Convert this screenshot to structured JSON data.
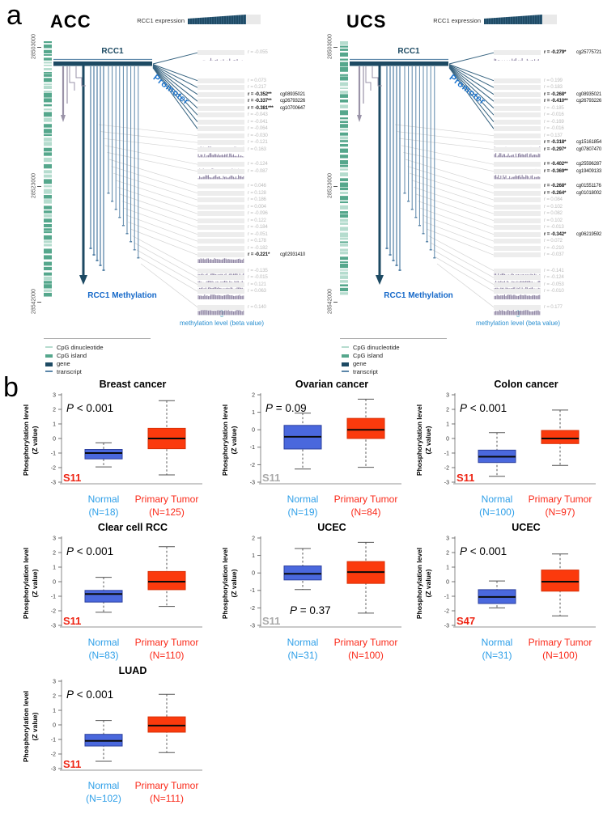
{
  "figure": {
    "section_a_label": "a",
    "section_b_label": "b"
  },
  "genomic": {
    "colors": {
      "gene_navy": "#1d4a63",
      "transcript_steel": "#5c87aa",
      "cpg_island_green": "#55a78c",
      "cpg_dinucleotide_green": "#b5dcce",
      "methylation_purple": "#8b80a0",
      "track_bg": "#ededed",
      "r_dim": "#bcbcbc",
      "r_sig": "#1a1a1a",
      "blue_label": "#1b74cf",
      "meth_axis_blue": "#2a8fd0",
      "gray_structure": "#9a93a8",
      "fan_gray": "#d4d4d4"
    },
    "legend": [
      {
        "label": "CpG dinucleotide",
        "color": "#b5dcce",
        "h": 2
      },
      {
        "label": "CpG island",
        "color": "#55a78c",
        "h": 4
      },
      {
        "label": "gene",
        "color": "#1d4a63",
        "h": 5
      },
      {
        "label": "transcript",
        "color": "#5c87aa",
        "h": 2
      }
    ],
    "panels": [
      {
        "id": "acc",
        "title": "ACC",
        "expression_label": "RCC1 expression",
        "gene_label": "RCC1",
        "promoter_label": "Promoter",
        "methylation_label": "RCC1 Methylation",
        "meth_axis_label": "methylation level (beta value)",
        "coord_ticks": [
          "28503000",
          "28523000",
          "28542000"
        ],
        "groups": [
          [
            {
              "r": "r = -0.055",
              "d": "low"
            }
          ],
          [
            {
              "r": "r = 0.073"
            },
            {
              "r": "r = 0.217"
            },
            {
              "r": "r = -0.352**",
              "cg": "cg08935021"
            },
            {
              "r": "r = -0.337**",
              "cg": "cg26793226"
            },
            {
              "r": "r = -0.381***",
              "cg": "cg10700647"
            },
            {
              "r": "r = -0.043"
            },
            {
              "r": "r = -0.041"
            },
            {
              "r": "r = -0.064",
              "d": "low"
            },
            {
              "r": "r = -0.030",
              "d": "low"
            },
            {
              "r": "r = -0.121",
              "d": "mid"
            },
            {
              "r": "r = 0.163",
              "d": "mid"
            }
          ],
          [
            {
              "r": "r = -0.124",
              "d": "mid"
            },
            {
              "r": "r = -0.087",
              "d": "mid"
            }
          ],
          [
            {
              "r": "r = 0.046"
            },
            {
              "r": "r = 0.128",
              "d": "low"
            },
            {
              "r": "r = 0.186",
              "d": "low"
            },
            {
              "r": "r = 0.004"
            },
            {
              "r": "r = -0.096"
            },
            {
              "r": "r = 0.122"
            },
            {
              "r": "r = -0.184"
            },
            {
              "r": "r = -0.051"
            },
            {
              "r": "r = 0.178"
            },
            {
              "r": "r = -0.182"
            },
            {
              "r": "r = -0.221*",
              "cg": "cg02931410",
              "d": "high"
            }
          ],
          [
            {
              "r": "r = -0.135",
              "d": "high"
            },
            {
              "r": "r = -0.015",
              "d": "high"
            },
            {
              "r": "r = 0.121",
              "d": "high"
            },
            {
              "r": "r = 0.063",
              "d": "high"
            }
          ],
          [
            {
              "r": "r = 0.140",
              "d": "high"
            }
          ]
        ]
      },
      {
        "id": "ucs",
        "title": "UCS",
        "expression_label": "RCC1 expression",
        "gene_label": "RCC1",
        "promoter_label": "Promoter",
        "methylation_label": "RCC1 Methylation",
        "meth_axis_label": "methylation level (beta value)",
        "coord_ticks": [
          "28503000",
          "28523000",
          "28542000"
        ],
        "groups": [
          [
            {
              "r": "r = -0.279*",
              "cg": "cg25775721",
              "d": "low"
            }
          ],
          [
            {
              "r": "r = 0.199"
            },
            {
              "r": "r = 0.183"
            },
            {
              "r": "r = -0.268*",
              "cg": "cg08935021"
            },
            {
              "r": "r = -0.410**",
              "cg": "cg26793226"
            },
            {
              "r": "r = -0.185"
            },
            {
              "r": "r = -0.016"
            },
            {
              "r": "r = -0.169"
            },
            {
              "r": "r = -0.016"
            },
            {
              "r": "r = 0.137",
              "d": "low"
            },
            {
              "r": "r = -0.318*",
              "cg": "cg15161854",
              "d": "mid"
            },
            {
              "r": "r = -0.297*",
              "cg": "cg07807470",
              "d": "mid"
            }
          ],
          [
            {
              "r": "r = -0.402**",
              "cg": "cg25596287",
              "d": "mid"
            },
            {
              "r": "r = -0.369**",
              "cg": "cg19409133",
              "d": "mid"
            }
          ],
          [
            {
              "r": "r = -0.268*",
              "cg": "cg01551176",
              "d": "low"
            },
            {
              "r": "r = -0.264*",
              "cg": "cg01018002",
              "d": "low"
            },
            {
              "r": "r = 0.084"
            },
            {
              "r": "r = 0.102"
            },
            {
              "r": "r = 0.082"
            },
            {
              "r": "r = 0.102"
            },
            {
              "r": "r = -0.013"
            },
            {
              "r": "r = -0.342*",
              "cg": "cg06219592",
              "d": "low"
            },
            {
              "r": "r = 0.072"
            },
            {
              "r": "r = -0.210"
            },
            {
              "r": "r = -0.037"
            }
          ],
          [
            {
              "r": "r = -0.141",
              "d": "high"
            },
            {
              "r": "r = -0.124",
              "d": "high"
            },
            {
              "r": "r = -0.053",
              "d": "high"
            },
            {
              "r": "r = -0.010",
              "d": "high"
            }
          ],
          [
            {
              "r": "r = 0.177",
              "d": "high"
            }
          ]
        ]
      }
    ]
  },
  "chart_data": {
    "type": "boxplot",
    "ylabel": [
      "Phosphorylation level",
      "(Z value)"
    ],
    "categories": [
      "Normal",
      "Primary Tumor"
    ],
    "colors": {
      "normal_fill": "#4a68dd",
      "normal_stroke": "#2b3f9e",
      "tumor_fill": "#fb3a0d",
      "tumor_stroke": "#d92f05",
      "normal_label": "#2e9fe8",
      "tumor_label": "#fa2a1a",
      "site_red": "#ee2413",
      "site_gray": "#a9a9a9",
      "median": "#0a0a0a"
    },
    "plots": [
      {
        "title": "Breast cancer",
        "p_label": "P < 0.001",
        "p_pos": "top",
        "site": "S11",
        "site_style": "red",
        "ylim": [
          -3,
          3
        ],
        "yticks": [
          3,
          2,
          1,
          0,
          -1,
          -2,
          -3
        ],
        "normal": {
          "label": "Normal",
          "n": "(N=18)",
          "lo": -1.95,
          "q1": -1.4,
          "med": -1.0,
          "q3": -0.75,
          "hi": -0.3
        },
        "tumor": {
          "label": "Primary Tumor",
          "n": "(N=125)",
          "lo": -2.5,
          "q1": -0.7,
          "med": 0.0,
          "q3": 0.7,
          "hi": 2.6
        }
      },
      {
        "title": "Ovarian cancer",
        "p_label": "P = 0.09",
        "p_pos": "top",
        "site": "S11",
        "site_style": "gray",
        "ylim": [
          -3,
          2
        ],
        "yticks": [
          2,
          1,
          0,
          -1,
          -2,
          -3
        ],
        "normal": {
          "label": "Normal",
          "n": "(N=19)",
          "lo": -2.25,
          "q1": -1.1,
          "med": -0.4,
          "q3": 0.25,
          "hi": 0.95
        },
        "tumor": {
          "label": "Primary Tumor",
          "n": "(N=84)",
          "lo": -2.15,
          "q1": -0.5,
          "med": 0.0,
          "q3": 0.65,
          "hi": 1.75
        }
      },
      {
        "title": "Colon cancer",
        "p_label": "P < 0.001",
        "p_pos": "top",
        "site": "S11",
        "site_style": "red",
        "ylim": [
          -3,
          3
        ],
        "yticks": [
          3,
          2,
          1,
          0,
          -1,
          -2,
          -3
        ],
        "normal": {
          "label": "Normal",
          "n": "(N=100)",
          "lo": -2.6,
          "q1": -1.65,
          "med": -1.25,
          "q3": -0.8,
          "hi": 0.4
        },
        "tumor": {
          "label": "Primary Tumor",
          "n": "(N=97)",
          "lo": -1.85,
          "q1": -0.35,
          "med": 0.0,
          "q3": 0.55,
          "hi": 1.95
        }
      },
      {
        "title": "Clear cell RCC",
        "p_label": "P < 0.001",
        "p_pos": "top",
        "site": "S11",
        "site_style": "red",
        "ylim": [
          -3,
          3
        ],
        "yticks": [
          3,
          2,
          1,
          0,
          -1,
          -2,
          -3
        ],
        "normal": {
          "label": "Normal",
          "n": "(N=83)",
          "lo": -2.1,
          "q1": -1.4,
          "med": -0.85,
          "q3": -0.6,
          "hi": 0.3
        },
        "tumor": {
          "label": "Primary Tumor",
          "n": "(N=110)",
          "lo": -1.7,
          "q1": -0.55,
          "med": 0.0,
          "q3": 0.7,
          "hi": 2.4
        }
      },
      {
        "title": "UCEC",
        "p_label": "P = 0.37",
        "p_pos": "bottom",
        "site": "S11",
        "site_style": "gray",
        "ylim": [
          -3,
          2
        ],
        "yticks": [
          2,
          1,
          0,
          -1,
          -2,
          -3
        ],
        "normal": {
          "label": "Normal",
          "n": "(N=31)",
          "lo": -0.95,
          "q1": -0.4,
          "med": -0.05,
          "q3": 0.4,
          "hi": 1.4
        },
        "tumor": {
          "label": "Primary Tumor",
          "n": "(N=100)",
          "lo": -2.3,
          "q1": -0.6,
          "med": 0.05,
          "q3": 0.65,
          "hi": 1.75
        }
      },
      {
        "title": "UCEC",
        "p_label": "P < 0.001",
        "p_pos": "top",
        "site": "S47",
        "site_style": "red",
        "ylim": [
          -3,
          3
        ],
        "yticks": [
          3,
          2,
          1,
          0,
          -1,
          -2,
          -3
        ],
        "normal": {
          "label": "Normal",
          "n": "(N=31)",
          "lo": -1.8,
          "q1": -1.5,
          "med": -1.05,
          "q3": -0.55,
          "hi": 0.05
        },
        "tumor": {
          "label": "Primary Tumor",
          "n": "(N=100)",
          "lo": -2.35,
          "q1": -0.65,
          "med": 0.0,
          "q3": 0.8,
          "hi": 1.9
        }
      },
      {
        "title": "LUAD",
        "p_label": "P < 0.001",
        "p_pos": "top",
        "site": "S11",
        "site_style": "red",
        "ylim": [
          -3,
          3
        ],
        "yticks": [
          3,
          2,
          1,
          0,
          -1,
          -2,
          -3
        ],
        "normal": {
          "label": "Normal",
          "n": "(N=102)",
          "lo": -2.5,
          "q1": -1.45,
          "med": -1.1,
          "q3": -0.65,
          "hi": 0.3
        },
        "tumor": {
          "label": "Primary Tumor",
          "n": "(N=111)",
          "lo": -1.9,
          "q1": -0.5,
          "med": -0.05,
          "q3": 0.55,
          "hi": 2.1
        }
      }
    ]
  }
}
